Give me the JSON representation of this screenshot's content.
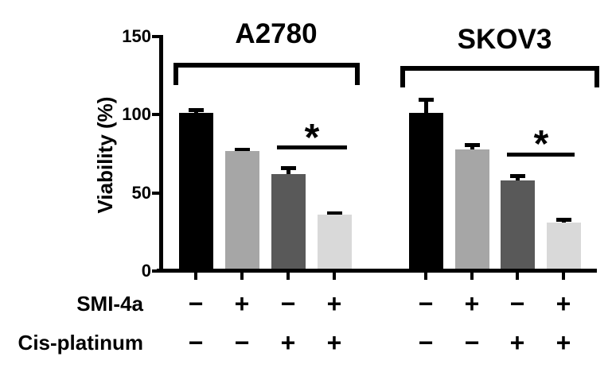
{
  "colors": {
    "background": "#ffffff",
    "axis": "#000000",
    "bar_fill_order": [
      "#000000",
      "#a6a6a6",
      "#595959",
      "#d9d9d9"
    ]
  },
  "chart_data": {
    "type": "bar",
    "title": "",
    "ylabel": "Viability (%)",
    "ylim": [
      0,
      150
    ],
    "yticks": [
      0,
      50,
      100,
      150
    ],
    "grid": false,
    "legend": "none",
    "error_bars": "upper SD whiskers with caps",
    "groups": [
      {
        "title": "A2780",
        "bars": [
          {
            "smi_4a": "−",
            "cis_platinum": "−",
            "value": 101,
            "error": 3,
            "color": "#000000"
          },
          {
            "smi_4a": "+",
            "cis_platinum": "−",
            "value": 77,
            "error": 2,
            "color": "#a6a6a6"
          },
          {
            "smi_4a": "−",
            "cis_platinum": "+",
            "value": 62,
            "error": 5,
            "color": "#595959"
          },
          {
            "smi_4a": "+",
            "cis_platinum": "+",
            "value": 36,
            "error": 2,
            "color": "#d9d9d9"
          }
        ],
        "significance": {
          "symbol": "*",
          "between_bars": [
            3,
            4
          ]
        }
      },
      {
        "title": "SKOV3",
        "bars": [
          {
            "smi_4a": "−",
            "cis_platinum": "−",
            "value": 101,
            "error": 10,
            "color": "#000000"
          },
          {
            "smi_4a": "+",
            "cis_platinum": "−",
            "value": 78,
            "error": 4,
            "color": "#a6a6a6"
          },
          {
            "smi_4a": "−",
            "cis_platinum": "+",
            "value": 58,
            "error": 4,
            "color": "#595959"
          },
          {
            "smi_4a": "+",
            "cis_platinum": "+",
            "value": 31,
            "error": 3,
            "color": "#d9d9d9"
          }
        ],
        "significance": {
          "symbol": "*",
          "between_bars": [
            3,
            4
          ]
        }
      }
    ],
    "treatment_rows": [
      {
        "label": "SMI-4a",
        "values": [
          "−",
          "+",
          "−",
          "+",
          "−",
          "+",
          "−",
          "+"
        ]
      },
      {
        "label": "Cis-platinum",
        "values": [
          "−",
          "−",
          "+",
          "+",
          "−",
          "−",
          "+",
          "+"
        ]
      }
    ]
  }
}
